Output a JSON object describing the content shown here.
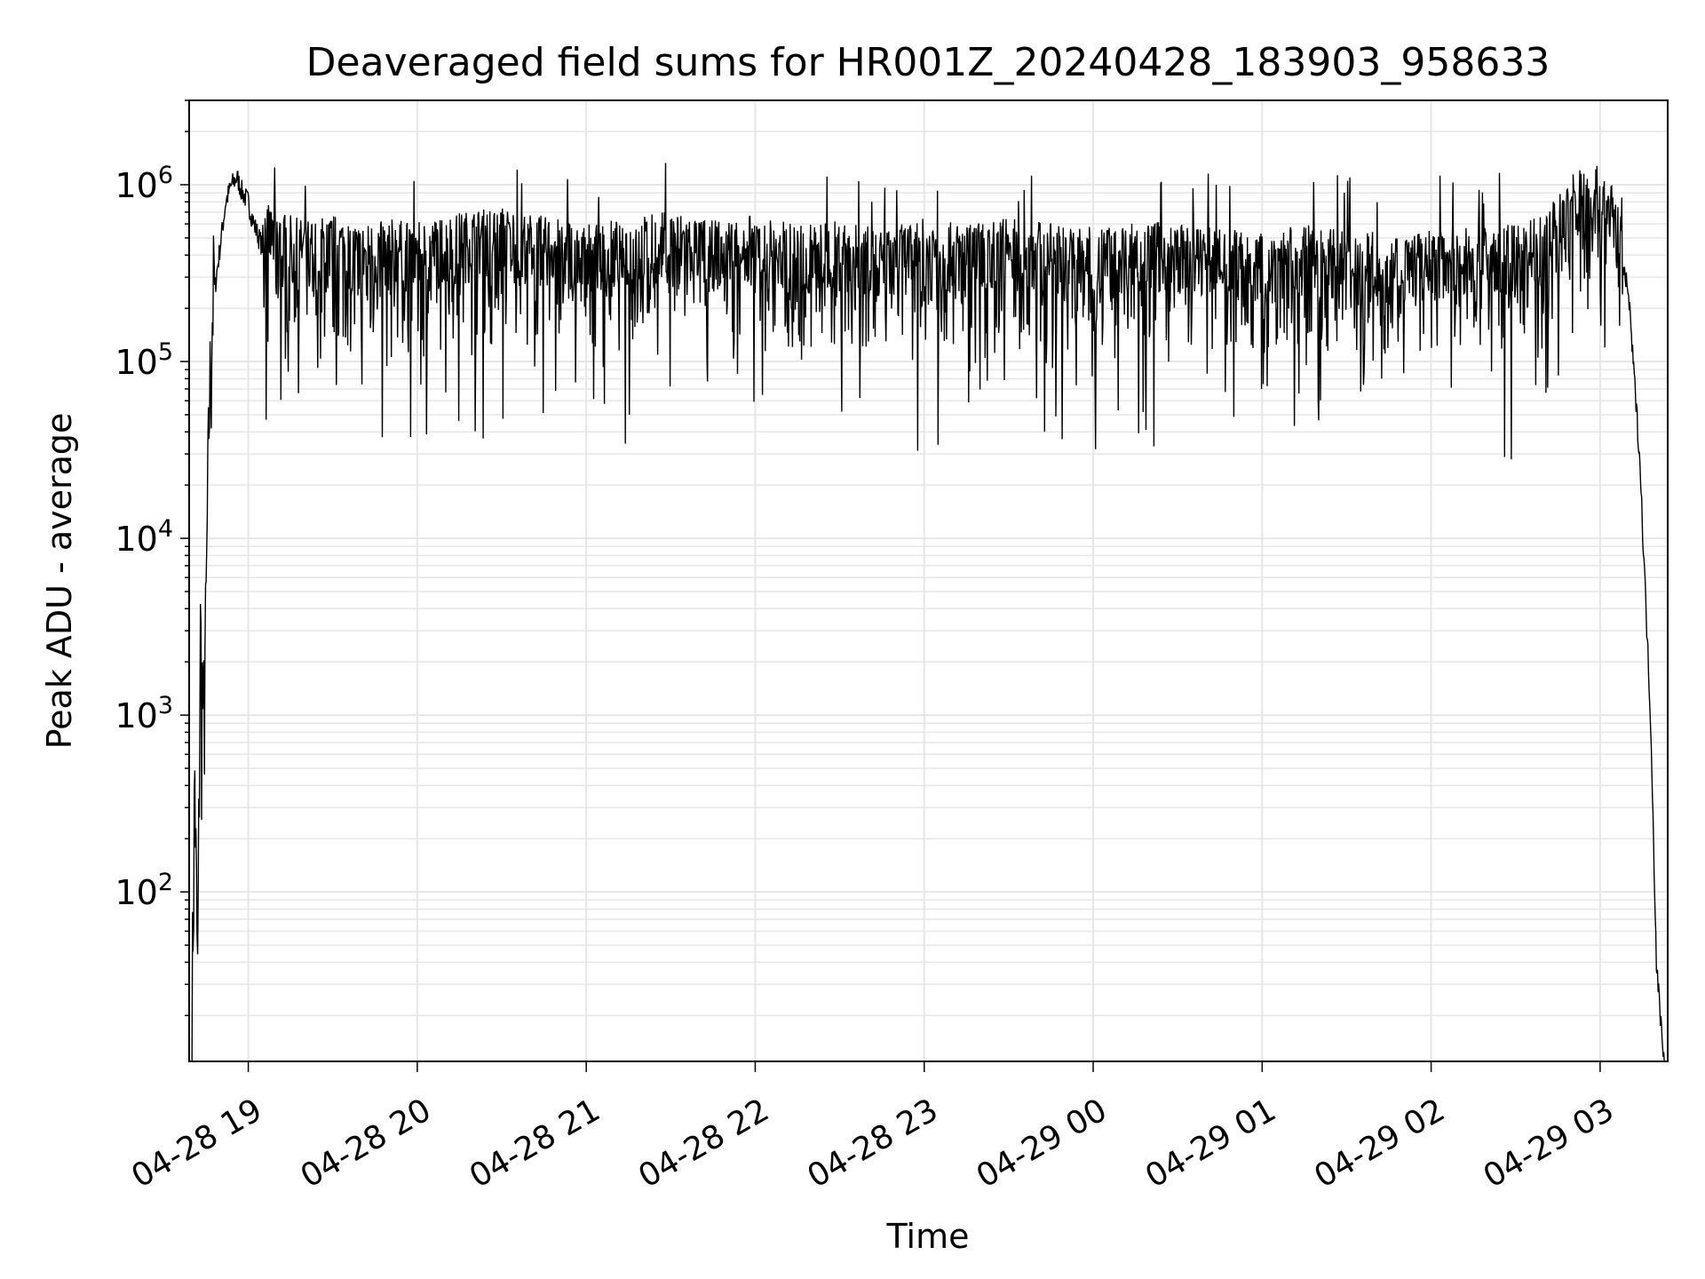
{
  "chart_data": {
    "type": "line",
    "title": "Deaveraged field sums for HR001Z_20240428_183903_958633",
    "xlabel": "Time",
    "ylabel": "Peak ADU - average",
    "yscale": "log",
    "xlim": [
      "2024-04-28 18:39",
      "2024-04-29 03:24"
    ],
    "ylim": [
      11,
      3000000
    ],
    "x_ticks": [
      {
        "time": "2024-04-28 19:00",
        "label": "04-28 19"
      },
      {
        "time": "2024-04-28 20:00",
        "label": "04-28 20"
      },
      {
        "time": "2024-04-28 21:00",
        "label": "04-28 21"
      },
      {
        "time": "2024-04-28 22:00",
        "label": "04-28 22"
      },
      {
        "time": "2024-04-28 23:00",
        "label": "04-28 23"
      },
      {
        "time": "2024-04-29 00:00",
        "label": "04-29 00"
      },
      {
        "time": "2024-04-29 01:00",
        "label": "04-29 01"
      },
      {
        "time": "2024-04-29 02:00",
        "label": "04-29 02"
      },
      {
        "time": "2024-04-29 03:00",
        "label": "04-29 03"
      }
    ],
    "y_ticks": [
      {
        "value": 100,
        "base": "10",
        "exp": "2"
      },
      {
        "value": 1000,
        "base": "10",
        "exp": "3"
      },
      {
        "value": 10000,
        "base": "10",
        "exp": "4"
      },
      {
        "value": 100000,
        "base": "10",
        "exp": "5"
      },
      {
        "value": 1000000,
        "base": "10",
        "exp": "6"
      }
    ],
    "grid": true,
    "line_color": "#000000",
    "grid_color": "#e6e6e6",
    "series": [
      {
        "x": [
          "2024-04-28 18:40",
          "2024-04-28 18:41",
          "2024-04-28 18:42",
          "2024-04-28 18:43",
          "2024-04-28 18:44",
          "2024-04-28 18:45",
          "2024-04-28 18:46",
          "2024-04-28 18:47",
          "2024-04-28 18:48",
          "2024-04-28 18:50",
          "2024-04-28 18:52",
          "2024-04-28 18:54",
          "2024-04-28 18:56",
          "2024-04-28 18:58",
          "2024-04-28 19:00",
          "2024-04-28 19:02",
          "2024-04-28 19:05",
          "2024-04-28 19:10",
          "2024-04-28 19:20",
          "2024-04-28 19:30",
          "2024-04-28 19:40",
          "2024-04-28 19:50",
          "2024-04-28 20:00",
          "2024-04-28 20:15",
          "2024-04-28 20:30",
          "2024-04-28 20:45",
          "2024-04-28 21:00",
          "2024-04-28 21:15",
          "2024-04-28 21:30",
          "2024-04-28 21:45",
          "2024-04-28 22:00",
          "2024-04-28 22:15",
          "2024-04-28 22:30",
          "2024-04-28 22:45",
          "2024-04-28 23:00",
          "2024-04-28 23:15",
          "2024-04-28 23:30",
          "2024-04-28 23:45",
          "2024-04-29 00:00",
          "2024-04-29 00:15",
          "2024-04-29 00:30",
          "2024-04-29 00:45",
          "2024-04-29 01:00",
          "2024-04-29 01:15",
          "2024-04-29 01:30",
          "2024-04-29 01:45",
          "2024-04-29 02:00",
          "2024-04-29 02:15",
          "2024-04-29 02:30",
          "2024-04-29 02:40",
          "2024-04-29 02:50",
          "2024-04-29 02:55",
          "2024-04-29 03:00",
          "2024-04-29 03:05",
          "2024-04-29 03:10",
          "2024-04-29 03:14",
          "2024-04-29 03:18",
          "2024-04-29 03:20",
          "2024-04-29 03:22",
          "2024-04-29 03:23"
        ],
        "y": [
          15,
          300,
          20,
          2000,
          600,
          2500,
          30000,
          100000,
          250000,
          450000,
          800000,
          1000000,
          1100000,
          900000,
          800000,
          600000,
          450000,
          400000,
          350000,
          380000,
          330000,
          360000,
          340000,
          390000,
          420000,
          370000,
          340000,
          360000,
          400000,
          350000,
          380000,
          330000,
          350000,
          310000,
          360000,
          330000,
          370000,
          340000,
          320000,
          350000,
          340000,
          330000,
          300000,
          330000,
          320000,
          300000,
          310000,
          330000,
          330000,
          380000,
          650000,
          750000,
          700000,
          550000,
          250000,
          30000,
          900,
          40,
          15,
          11
        ],
        "spike_seed": 7,
        "min_dip": 27000,
        "max_peak": 1700000
      }
    ]
  }
}
